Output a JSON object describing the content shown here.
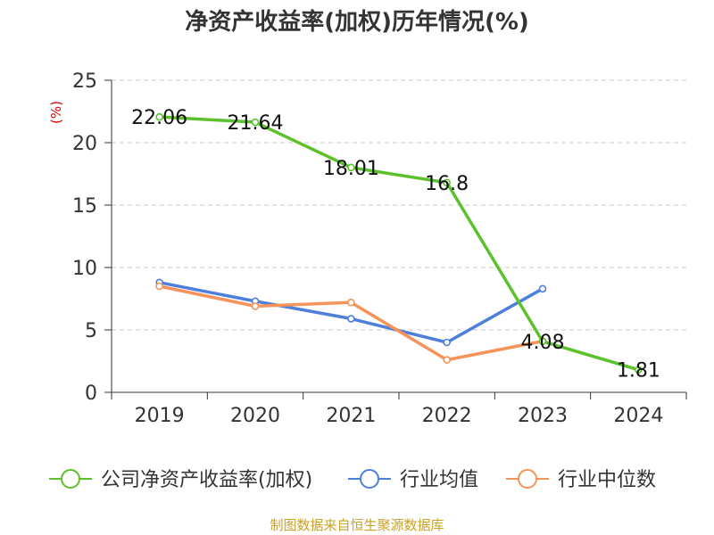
{
  "chart_data": {
    "type": "line",
    "title": "净资产收益率(加权)历年情况(%)",
    "y_unit": "(%)",
    "categories": [
      "2019",
      "2020",
      "2021",
      "2022",
      "2023",
      "2024"
    ],
    "ylim": [
      0,
      25
    ],
    "yticks": [
      0,
      5,
      10,
      15,
      20,
      25
    ],
    "grid": true,
    "legend_position": "bottom",
    "series": [
      {
        "name": "公司净资产收益率(加权)",
        "color": "#5cc22b",
        "values": [
          22.06,
          21.64,
          18.01,
          16.8,
          4.08,
          1.81
        ],
        "labels": [
          "22.06",
          "21.64",
          "18.01",
          "16.8",
          "4.08",
          "1.81"
        ]
      },
      {
        "name": "行业均值",
        "color": "#4e7fdb",
        "values": [
          8.8,
          7.3,
          5.9,
          4.0,
          8.3,
          null
        ]
      },
      {
        "name": "行业中位数",
        "color": "#f5935a",
        "values": [
          8.5,
          6.9,
          7.2,
          2.6,
          4.1,
          null
        ]
      }
    ]
  },
  "source_note": "制图数据来自恒生聚源数据库"
}
